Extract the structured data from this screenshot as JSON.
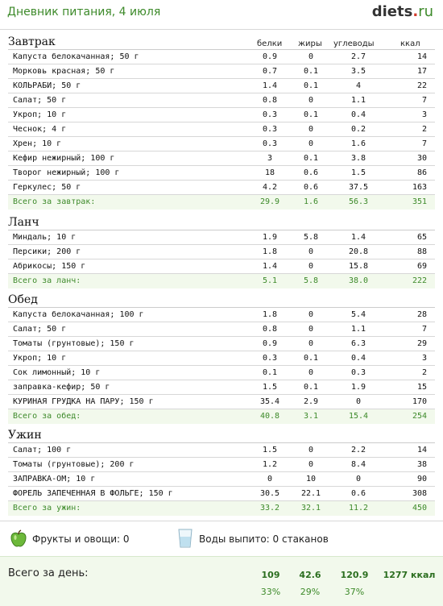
{
  "header": {
    "title": "Дневник питания, 4 июля",
    "logo_main": "diets",
    "logo_dot": ".",
    "logo_tld": "ru"
  },
  "columns": {
    "protein": "белки",
    "fat": "жиры",
    "carbs": "углеводы",
    "kcal": "ккал"
  },
  "meals": [
    {
      "title": "Завтрак",
      "items": [
        {
          "name": "Капуста белокачанная; 50 г",
          "protein": "0.9",
          "fat": "0",
          "carbs": "2.7",
          "kcal": "14"
        },
        {
          "name": "Морковь красная; 50 г",
          "protein": "0.7",
          "fat": "0.1",
          "carbs": "3.5",
          "kcal": "17"
        },
        {
          "name": "КОЛЬРАБИ; 50 г",
          "protein": "1.4",
          "fat": "0.1",
          "carbs": "4",
          "kcal": "22"
        },
        {
          "name": "Салат; 50 г",
          "protein": "0.8",
          "fat": "0",
          "carbs": "1.1",
          "kcal": "7"
        },
        {
          "name": "Укроп; 10 г",
          "protein": "0.3",
          "fat": "0.1",
          "carbs": "0.4",
          "kcal": "3"
        },
        {
          "name": "Чеснок; 4 г",
          "protein": "0.3",
          "fat": "0",
          "carbs": "0.2",
          "kcal": "2"
        },
        {
          "name": "Хрен; 10 г",
          "protein": "0.3",
          "fat": "0",
          "carbs": "1.6",
          "kcal": "7"
        },
        {
          "name": "Кефир нежирный; 100 г",
          "protein": "3",
          "fat": "0.1",
          "carbs": "3.8",
          "kcal": "30"
        },
        {
          "name": "Творог нежирный; 100 г",
          "protein": "18",
          "fat": "0.6",
          "carbs": "1.5",
          "kcal": "86"
        },
        {
          "name": "Геркулес; 50 г",
          "protein": "4.2",
          "fat": "0.6",
          "carbs": "37.5",
          "kcal": "163"
        }
      ],
      "total": {
        "name": "Всего за завтрак:",
        "protein": "29.9",
        "fat": "1.6",
        "carbs": "56.3",
        "kcal": "351"
      }
    },
    {
      "title": "Ланч",
      "items": [
        {
          "name": "Миндаль; 10 г",
          "protein": "1.9",
          "fat": "5.8",
          "carbs": "1.4",
          "kcal": "65"
        },
        {
          "name": "Персики; 200 г",
          "protein": "1.8",
          "fat": "0",
          "carbs": "20.8",
          "kcal": "88"
        },
        {
          "name": "Абрикосы; 150 г",
          "protein": "1.4",
          "fat": "0",
          "carbs": "15.8",
          "kcal": "69"
        }
      ],
      "total": {
        "name": "Всего за ланч:",
        "protein": "5.1",
        "fat": "5.8",
        "carbs": "38.0",
        "kcal": "222"
      }
    },
    {
      "title": "Обед",
      "items": [
        {
          "name": "Капуста белокачанная; 100 г",
          "protein": "1.8",
          "fat": "0",
          "carbs": "5.4",
          "kcal": "28"
        },
        {
          "name": "Салат; 50 г",
          "protein": "0.8",
          "fat": "0",
          "carbs": "1.1",
          "kcal": "7"
        },
        {
          "name": "Томаты (грунтовые); 150 г",
          "protein": "0.9",
          "fat": "0",
          "carbs": "6.3",
          "kcal": "29"
        },
        {
          "name": "Укроп; 10 г",
          "protein": "0.3",
          "fat": "0.1",
          "carbs": "0.4",
          "kcal": "3"
        },
        {
          "name": "Сок лимонный; 10 г",
          "protein": "0.1",
          "fat": "0",
          "carbs": "0.3",
          "kcal": "2"
        },
        {
          "name": "заправка-кефир; 50 г",
          "protein": "1.5",
          "fat": "0.1",
          "carbs": "1.9",
          "kcal": "15"
        },
        {
          "name": "КУРИНАЯ ГРУДКА НА ПАРУ; 150 г",
          "protein": "35.4",
          "fat": "2.9",
          "carbs": "0",
          "kcal": "170"
        }
      ],
      "total": {
        "name": "Всего за обед:",
        "protein": "40.8",
        "fat": "3.1",
        "carbs": "15.4",
        "kcal": "254"
      }
    },
    {
      "title": "Ужин",
      "items": [
        {
          "name": "Салат; 100 г",
          "protein": "1.5",
          "fat": "0",
          "carbs": "2.2",
          "kcal": "14"
        },
        {
          "name": "Томаты (грунтовые); 200 г",
          "protein": "1.2",
          "fat": "0",
          "carbs": "8.4",
          "kcal": "38"
        },
        {
          "name": "ЗАПРАВКА-ОМ; 10 г",
          "protein": "0",
          "fat": "10",
          "carbs": "0",
          "kcal": "90"
        },
        {
          "name": "ФОРЕЛЬ ЗАПЕЧЕННАЯ В ФОЛЬГЕ; 150 г",
          "protein": "30.5",
          "fat": "22.1",
          "carbs": "0.6",
          "kcal": "308"
        }
      ],
      "total": {
        "name": "Всего за ужин:",
        "protein": "33.2",
        "fat": "32.1",
        "carbs": "11.2",
        "kcal": "450"
      }
    }
  ],
  "extras": {
    "fruits": "Фрукты и овощи: 0",
    "water": "Воды выпито: 0 стаканов",
    "apple_color": "#6cb83a",
    "glass_color": "#bfe0ef"
  },
  "day_total": {
    "label": "Всего за день:",
    "protein": "109",
    "fat": "42.6",
    "carbs": "120.9",
    "kcal": "1277 ккал",
    "protein_pct": "33%",
    "fat_pct": "29%",
    "carbs_pct": "37%"
  },
  "colors": {
    "accent": "#3d8a2a",
    "total_bg": "#f2f9ec",
    "logo_dot": "#d23a2a"
  }
}
